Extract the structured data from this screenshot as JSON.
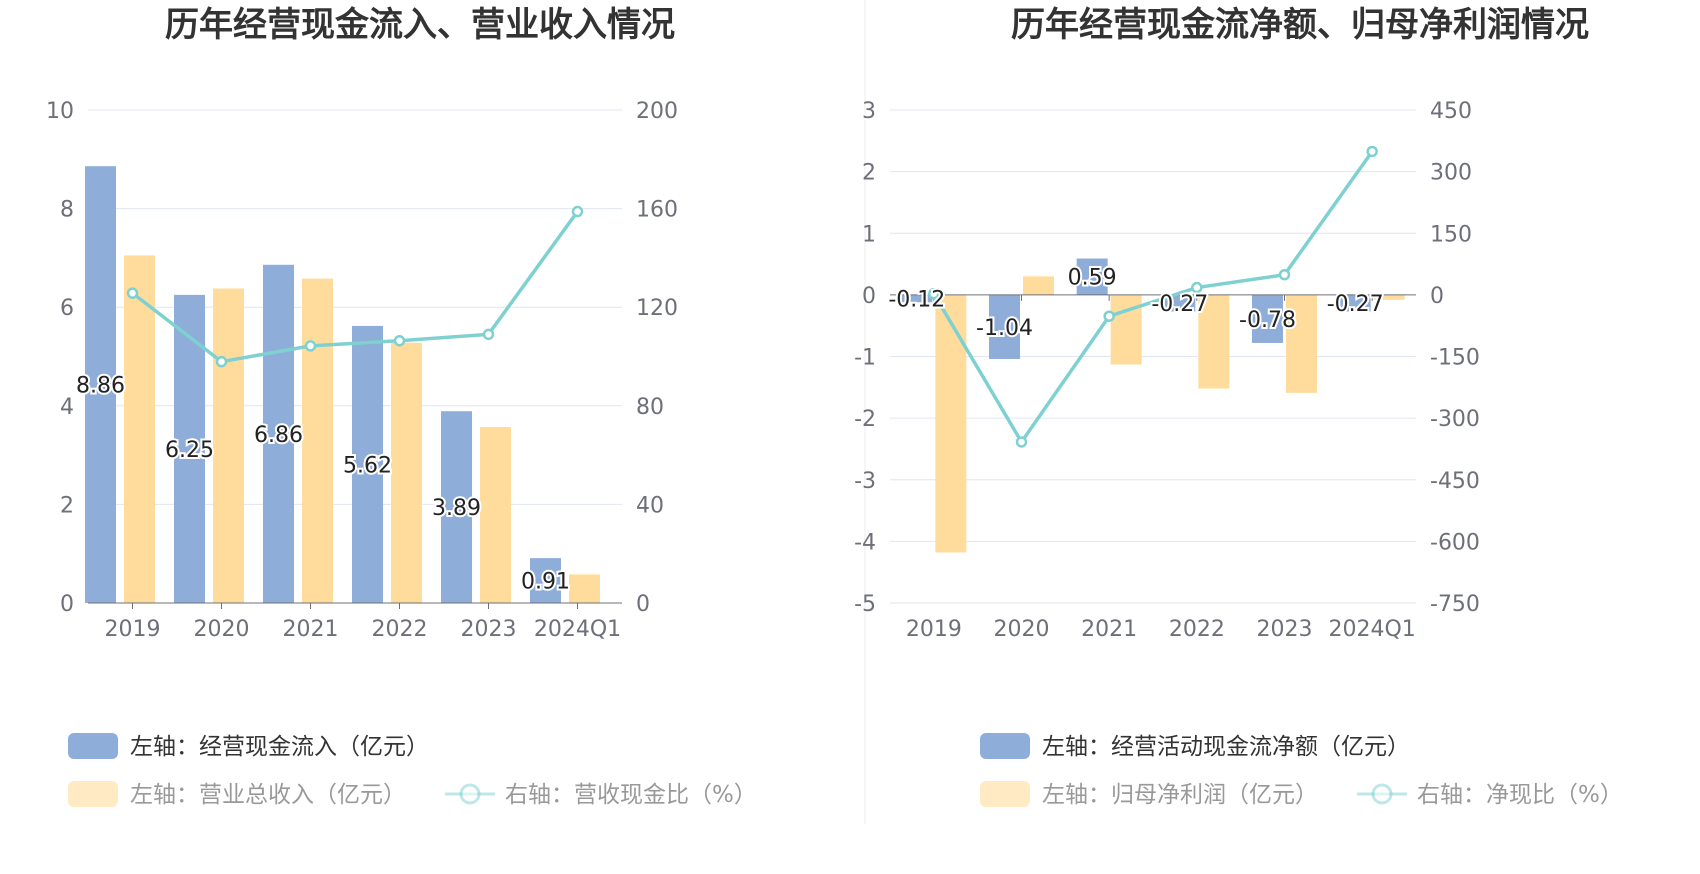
{
  "colors": {
    "blue": "#8eadd9",
    "yellow": "#ffdc9b",
    "line": "#7fd1d1",
    "grid": "#e0e6f1",
    "axis": "#6e7079"
  },
  "chart_data": [
    {
      "type": "bar",
      "title": "历年经营现金流入、营业收入情况",
      "categories": [
        "2019",
        "2020",
        "2021",
        "2022",
        "2023",
        "2024Q1"
      ],
      "left_axis": {
        "min": 0,
        "max": 10,
        "ticks": [
          "0",
          "2",
          "4",
          "6",
          "8",
          "10"
        ]
      },
      "right_axis": {
        "min": 0,
        "max": 200,
        "ticks": [
          "0",
          "40",
          "80",
          "120",
          "160",
          "200"
        ]
      },
      "series": [
        {
          "name": "左轴：经营现金流入（亿元）",
          "type": "bar",
          "axis": "left",
          "color": "#8eadd9",
          "values": [
            8.86,
            6.25,
            6.86,
            5.62,
            3.89,
            0.91
          ],
          "labels": [
            "8.86",
            "6.25",
            "6.86",
            "5.62",
            "3.89",
            "0.91"
          ]
        },
        {
          "name": "左轴：营业总收入（亿元）",
          "type": "bar",
          "axis": "left",
          "color": "#ffdc9b",
          "values": [
            7.05,
            6.38,
            6.58,
            5.28,
            3.57,
            0.58
          ]
        },
        {
          "name": "右轴：营收现金比（%）",
          "type": "line",
          "axis": "right",
          "color": "#7fd1d1",
          "values": [
            125.7,
            97.9,
            104.3,
            106.4,
            109.0,
            158.8
          ]
        }
      ]
    },
    {
      "type": "bar",
      "title": "历年经营现金流净额、归母净利润情况",
      "categories": [
        "2019",
        "2020",
        "2021",
        "2022",
        "2023",
        "2024Q1"
      ],
      "left_axis": {
        "min": -5,
        "max": 3,
        "ticks": [
          "-5",
          "-4",
          "-3",
          "-2",
          "-1",
          "0",
          "1",
          "2",
          "3"
        ]
      },
      "right_axis": {
        "min": -750,
        "max": 450,
        "ticks": [
          "-750",
          "-600",
          "-450",
          "-300",
          "-150",
          "0",
          "150",
          "300",
          "450"
        ]
      },
      "series": [
        {
          "name": "左轴：经营活动现金流净额（亿元）",
          "type": "bar",
          "axis": "left",
          "color": "#8eadd9",
          "values": [
            -0.12,
            -1.04,
            0.59,
            -0.27,
            -0.78,
            -0.27
          ],
          "labels": [
            "-0.12",
            "-1.04",
            "0.59",
            "-0.27",
            "-0.78",
            "-0.27"
          ]
        },
        {
          "name": "左轴：归母净利润（亿元）",
          "type": "bar",
          "axis": "left",
          "color": "#ffdc9b",
          "values": [
            -4.18,
            0.3,
            -1.13,
            -1.52,
            -1.59,
            -0.08
          ]
        },
        {
          "name": "右轴：净现比（%）",
          "type": "line",
          "axis": "right",
          "color": "#7fd1d1",
          "values": [
            2.9,
            -358,
            -52,
            17.8,
            49,
            349
          ]
        }
      ]
    }
  ]
}
